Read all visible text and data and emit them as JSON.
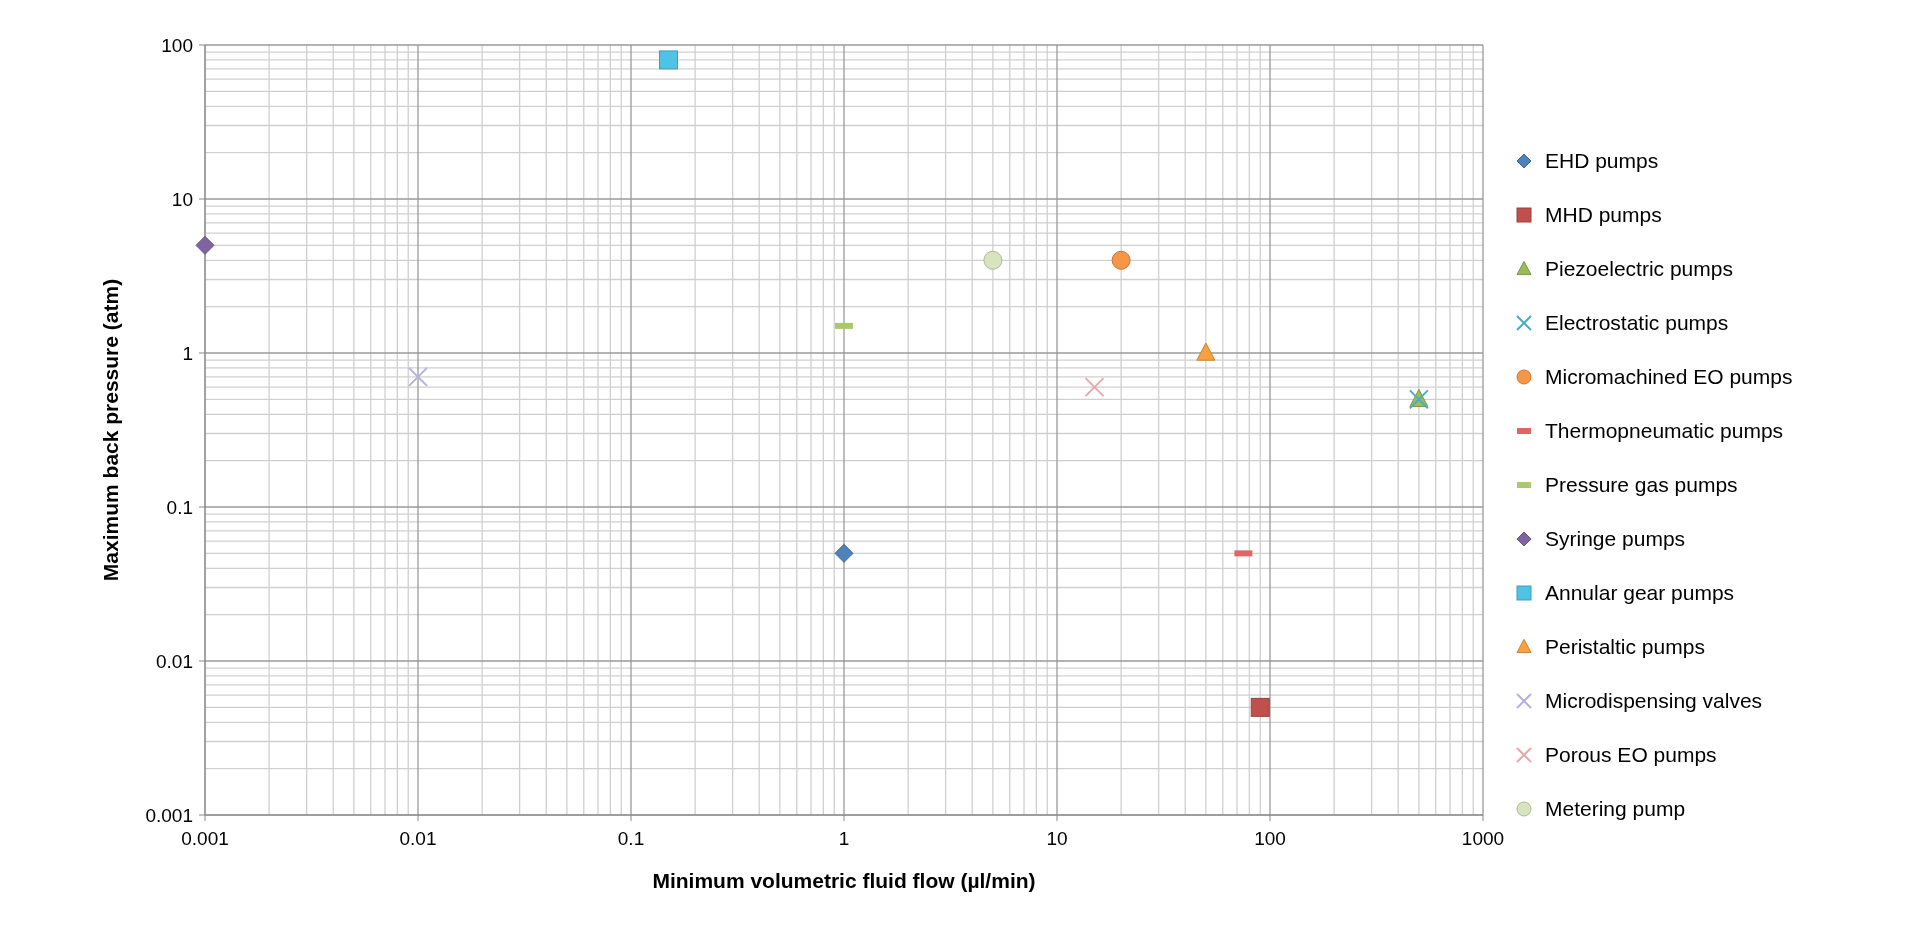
{
  "chart_data": {
    "type": "scatter",
    "xlabel": "Minimum volumetric fluid flow (µl/min)",
    "ylabel": "Maximum back pressure (atm)",
    "log": "xy",
    "grid": true,
    "legend": "right",
    "xlim": [
      0.001,
      1000
    ],
    "ylim": [
      0.001,
      100
    ],
    "xticks": [
      0.001,
      0.01,
      0.1,
      1,
      10,
      100,
      1000
    ],
    "yticks": [
      0.001,
      0.01,
      0.1,
      1,
      10,
      100
    ],
    "series": [
      {
        "name": "EHD pumps",
        "color": "#4f81bd",
        "marker": "diamond",
        "x": [
          1
        ],
        "values": [
          0.05
        ]
      },
      {
        "name": "MHD pumps",
        "color": "#c0504d",
        "marker": "square",
        "x": [
          90
        ],
        "values": [
          0.005
        ]
      },
      {
        "name": "Piezoelectric pumps",
        "color": "#9bbb59",
        "marker": "triangle",
        "x": [
          500
        ],
        "values": [
          0.5
        ]
      },
      {
        "name": "Electrostatic pumps",
        "color": "#4bacc6",
        "marker": "cross",
        "x": [
          500
        ],
        "values": [
          0.5
        ]
      },
      {
        "name": "Micromachined EO pumps",
        "color": "#f79646",
        "marker": "circle",
        "x": [
          20
        ],
        "values": [
          4
        ]
      },
      {
        "name": "Thermopneumatic pumps",
        "color": "#e06666",
        "x": [
          75
        ],
        "values": [
          0.05
        ]
      },
      {
        "name": "Pressure gas pumps",
        "color": "#a9c96b",
        "x": [
          1
        ],
        "values": [
          1.5
        ]
      },
      {
        "name": "Syringe pumps",
        "color": "#8064a2",
        "marker": "diamond",
        "x": [
          0.001
        ],
        "values": [
          5
        ]
      },
      {
        "name": "Annular gear pumps",
        "color": "#4fc3e6",
        "marker": "square",
        "x": [
          0.15
        ],
        "values": [
          80
        ]
      },
      {
        "name": "Peristaltic pumps",
        "color": "#f9a040",
        "marker": "triangle",
        "x": [
          50
        ],
        "values": [
          1
        ]
      },
      {
        "name": "Microdispensing valves",
        "color": "#b3b3dd",
        "marker": "cross",
        "x": [
          0.01
        ],
        "values": [
          0.7
        ]
      },
      {
        "name": "Porous EO pumps",
        "color": "#e6a8a8",
        "marker": "cross",
        "x": [
          15
        ],
        "values": [
          0.6
        ]
      },
      {
        "name": "Metering pump",
        "color": "#d7e4bd",
        "marker": "circle",
        "x": [
          5
        ],
        "values": [
          4
        ]
      }
    ]
  }
}
